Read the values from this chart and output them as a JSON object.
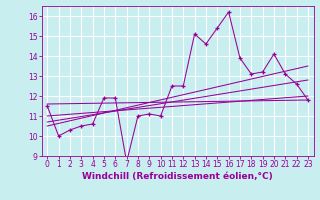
{
  "xlabel": "Windchill (Refroidissement éolien,°C)",
  "bg_color": "#c8eef0",
  "grid_color": "#ffffff",
  "line_color": "#990099",
  "marker_color": "#990099",
  "x_data": [
    0,
    1,
    2,
    3,
    4,
    5,
    6,
    7,
    8,
    9,
    10,
    11,
    12,
    13,
    14,
    15,
    16,
    17,
    18,
    19,
    20,
    21,
    22,
    23
  ],
  "y_line1": [
    11.5,
    10.0,
    10.3,
    10.5,
    10.6,
    11.9,
    11.9,
    8.7,
    11.0,
    11.1,
    11.0,
    12.5,
    12.5,
    15.1,
    14.6,
    15.4,
    16.2,
    13.9,
    13.1,
    13.2,
    14.1,
    13.1,
    12.6,
    11.8
  ],
  "regression_lines": [
    {
      "x": [
        0,
        23
      ],
      "y": [
        11.6,
        11.8
      ]
    },
    {
      "x": [
        0,
        23
      ],
      "y": [
        11.0,
        12.0
      ]
    },
    {
      "x": [
        0,
        23
      ],
      "y": [
        10.7,
        12.8
      ]
    },
    {
      "x": [
        0,
        23
      ],
      "y": [
        10.5,
        13.5
      ]
    }
  ],
  "xlim": [
    -0.5,
    23.5
  ],
  "ylim": [
    9.0,
    16.5
  ],
  "yticks": [
    9,
    10,
    11,
    12,
    13,
    14,
    15,
    16
  ],
  "xticks": [
    0,
    1,
    2,
    3,
    4,
    5,
    6,
    7,
    8,
    9,
    10,
    11,
    12,
    13,
    14,
    15,
    16,
    17,
    18,
    19,
    20,
    21,
    22,
    23
  ],
  "tick_color": "#990099",
  "spine_color": "#990099",
  "label_color": "#990099",
  "label_fontsize": 6.5,
  "tick_fontsize": 5.5
}
